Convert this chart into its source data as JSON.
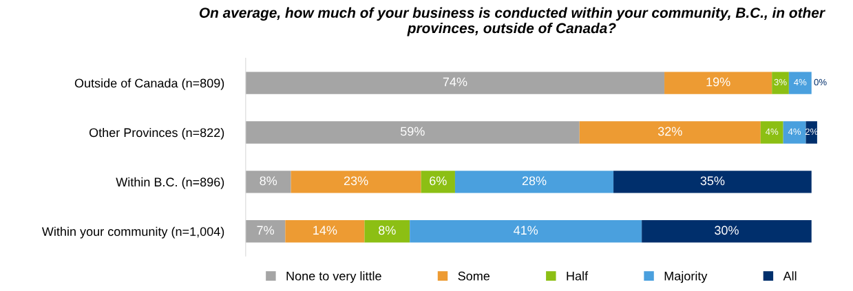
{
  "chart_data": {
    "type": "bar",
    "orientation": "horizontal",
    "stacked": true,
    "title": "On average, how much of your business is conducted within your community, B.C., in other provinces, outside of Canada?",
    "categories": [
      "Outside of Canada (n=809)",
      "Other Provinces (n=822)",
      "Within B.C. (n=896)",
      "Within your community (n=1,004)"
    ],
    "series": [
      {
        "name": "None to very little",
        "color": "#a5a5a5",
        "values": [
          74,
          59,
          8,
          7
        ],
        "value_labels": [
          "74%",
          "59%",
          "8%",
          "7%"
        ]
      },
      {
        "name": "Some",
        "color": "#ed9b33",
        "values": [
          19,
          32,
          23,
          14
        ],
        "value_labels": [
          "19%",
          "32%",
          "23%",
          "14%"
        ]
      },
      {
        "name": "Half",
        "color": "#8cbf14",
        "values": [
          3,
          4,
          6,
          8
        ],
        "value_labels": [
          "3%",
          "4%",
          "6%",
          "8%"
        ]
      },
      {
        "name": "Majority",
        "color": "#4aa0de",
        "values": [
          4,
          4,
          28,
          41
        ],
        "value_labels": [
          "4%",
          "4%",
          "28%",
          "41%"
        ]
      },
      {
        "name": "All",
        "color": "#002f6c",
        "values": [
          0,
          2,
          35,
          30
        ],
        "value_labels": [
          "0%",
          "2%",
          "35%",
          "30%"
        ]
      }
    ],
    "tick_labels": false,
    "grid": false,
    "legend": "bottom"
  }
}
